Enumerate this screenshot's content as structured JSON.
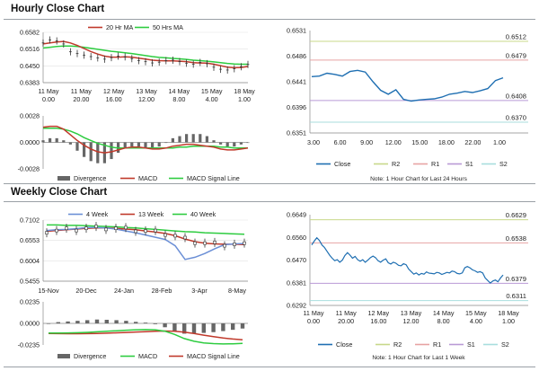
{
  "sections": {
    "hourly": "Hourly Close Chart",
    "weekly": "Weekly Close Chart"
  },
  "colors": {
    "close": "#1f6fb2",
    "ma_red": "#c0392b",
    "ma_green": "#2ecc40",
    "bar": "#666666",
    "r2": "#c8d88a",
    "r1": "#e7a3a3",
    "s1": "#b99ad6",
    "s2": "#a8dede",
    "blue4w": "#6b8fd6"
  },
  "chart_data": [
    {
      "id": "hourly-ma",
      "type": "line",
      "legend": [
        "20 Hr MA",
        "50 Hrs MA"
      ],
      "x_tick_labels": [
        [
          "11 May",
          "0.00"
        ],
        [
          "11 May",
          "20.00"
        ],
        [
          "12 May",
          "16.00"
        ],
        [
          "13 May",
          "12.00"
        ],
        [
          "14 May",
          "8.00"
        ],
        [
          "15 May",
          "4.00"
        ],
        [
          "18 May",
          "1.00"
        ]
      ],
      "y_tick_labels": [
        "0.6582",
        "0.6516",
        "0.6450",
        "0.6383"
      ],
      "ylim": [
        0.6383,
        0.6582
      ],
      "series": [
        {
          "name": "Close",
          "values": [
            0.654,
            0.6552,
            0.6548,
            0.6536,
            0.6505,
            0.6498,
            0.6492,
            0.6486,
            0.6481,
            0.6476,
            0.6482,
            0.6488,
            0.6485,
            0.6478,
            0.647,
            0.6466,
            0.6461,
            0.6464,
            0.647,
            0.6472,
            0.6466,
            0.646,
            0.6456,
            0.6463,
            0.6458,
            0.6444,
            0.6436,
            0.6433,
            0.6438,
            0.6446,
            0.6455
          ]
        },
        {
          "name": "20 Hr MA",
          "values": [
            0.6536,
            0.654,
            0.6544,
            0.6546,
            0.654,
            0.653,
            0.6518,
            0.6506,
            0.6496,
            0.6488,
            0.6484,
            0.6484,
            0.6485,
            0.6484,
            0.648,
            0.6476,
            0.6472,
            0.647,
            0.6469,
            0.6469,
            0.6468,
            0.6466,
            0.6462,
            0.6461,
            0.646,
            0.6456,
            0.645,
            0.6444,
            0.6442,
            0.6443,
            0.6447
          ]
        },
        {
          "name": "50 Hrs MA",
          "values": [
            0.652,
            0.6523,
            0.6526,
            0.6528,
            0.6528,
            0.6526,
            0.6523,
            0.6519,
            0.6515,
            0.6511,
            0.6507,
            0.6504,
            0.6501,
            0.6498,
            0.6494,
            0.649,
            0.6486,
            0.6483,
            0.6481,
            0.6479,
            0.6477,
            0.6475,
            0.6472,
            0.647,
            0.6468,
            0.6465,
            0.6462,
            0.6459,
            0.6457,
            0.6456,
            0.6456
          ]
        }
      ]
    },
    {
      "id": "hourly-macd",
      "type": "bar",
      "legend": [
        "Divergence",
        "MACD",
        "MACD Signal Line"
      ],
      "y_tick_labels": [
        "0.0028",
        "0.0000",
        "-0.0028"
      ],
      "ylim": [
        -0.0028,
        0.0028
      ],
      "divergence": [
        0.0001,
        0.0002,
        0.0002,
        0.0001,
        -0.0001,
        -0.0004,
        -0.0007,
        -0.0009,
        -0.001,
        -0.001,
        -0.0008,
        -0.0005,
        -0.0003,
        -0.0002,
        -0.0002,
        -0.0003,
        -0.0003,
        -0.0002,
        0.0,
        0.0002,
        0.0003,
        0.0004,
        0.0004,
        0.0004,
        0.0003,
        0.0001,
        -0.0001,
        -0.0002,
        -0.0002,
        -0.0001,
        0.0
      ],
      "macd": [
        0.0016,
        0.0017,
        0.0017,
        0.0014,
        0.0008,
        0.0002,
        -0.0003,
        -0.0007,
        -0.001,
        -0.0011,
        -0.001,
        -0.0008,
        -0.0006,
        -0.0005,
        -0.0005,
        -0.0006,
        -0.0007,
        -0.0007,
        -0.0006,
        -0.0004,
        -0.0003,
        -0.0002,
        -0.0002,
        -0.0003,
        -0.0004,
        -0.0005,
        -0.0007,
        -0.0008,
        -0.0008,
        -0.0007,
        -0.0006
      ],
      "signal": [
        0.0015,
        0.0015,
        0.0015,
        0.0014,
        0.0012,
        0.0009,
        0.0005,
        0.0002,
        -0.0001,
        -0.0003,
        -0.0005,
        -0.0006,
        -0.0006,
        -0.0006,
        -0.0006,
        -0.0006,
        -0.0006,
        -0.0006,
        -0.0006,
        -0.0006,
        -0.0005,
        -0.0005,
        -0.0004,
        -0.0004,
        -0.0004,
        -0.0004,
        -0.0005,
        -0.0005,
        -0.0006,
        -0.0006,
        -0.0006
      ]
    },
    {
      "id": "hourly-close",
      "type": "line",
      "legend": [
        "Close",
        "R2",
        "R1",
        "S1",
        "S2"
      ],
      "x_tick_labels": [
        "3.00",
        "6.00",
        "9.00",
        "12.00",
        "15.00",
        "18.00",
        "22.00",
        "1.00"
      ],
      "y_tick_labels": [
        "0.6531",
        "0.6486",
        "0.6441",
        "0.6396",
        "0.6351"
      ],
      "ylim": [
        0.6351,
        0.6531
      ],
      "levels": [
        {
          "name": "R2",
          "value": 0.6512,
          "label": "0.6512"
        },
        {
          "name": "R1",
          "value": 0.6479,
          "label": "0.6479"
        },
        {
          "name": "S1",
          "value": 0.6408,
          "label": "0.6408"
        },
        {
          "name": "S2",
          "value": 0.637,
          "label": "0.6370"
        }
      ],
      "values": [
        0.645,
        0.6451,
        0.6456,
        0.6454,
        0.6451,
        0.6459,
        0.6461,
        0.6458,
        0.6441,
        0.6426,
        0.6419,
        0.6427,
        0.641,
        0.6407,
        0.6409,
        0.641,
        0.6411,
        0.6414,
        0.6419,
        0.6421,
        0.6424,
        0.6422,
        0.6425,
        0.6429,
        0.6443,
        0.6448
      ],
      "note": "Note: 1 Hour Chart for Last 24 Hours"
    },
    {
      "id": "weekly-ma",
      "type": "line",
      "legend": [
        "4 Week",
        "13 Week",
        "40 Week"
      ],
      "x_tick_labels": [
        "15-Nov",
        "20-Dec",
        "24-Jan",
        "28-Feb",
        "3-Apr",
        "8-May"
      ],
      "y_tick_labels": [
        "0.7102",
        "0.6553",
        "0.6004",
        "0.5455"
      ],
      "ylim": [
        0.5455,
        0.7102
      ],
      "series": [
        {
          "name": "4 Week",
          "values": [
            0.682,
            0.684,
            0.685,
            0.687,
            0.69,
            0.69,
            0.689,
            0.686,
            0.681,
            0.676,
            0.67,
            0.664,
            0.658,
            0.641,
            0.604,
            0.61,
            0.62,
            0.633,
            0.644,
            0.646,
            0.647
          ]
        },
        {
          "name": "13 Week",
          "values": [
            0.68,
            0.682,
            0.684,
            0.686,
            0.688,
            0.689,
            0.689,
            0.688,
            0.686,
            0.684,
            0.681,
            0.678,
            0.674,
            0.668,
            0.659,
            0.652,
            0.648,
            0.646,
            0.645,
            0.645,
            0.644
          ]
        },
        {
          "name": "40 Week",
          "values": [
            0.697,
            0.697,
            0.696,
            0.696,
            0.695,
            0.694,
            0.693,
            0.692,
            0.69,
            0.689,
            0.687,
            0.685,
            0.683,
            0.681,
            0.679,
            0.678,
            0.676,
            0.675,
            0.674,
            0.673,
            0.672
          ]
        }
      ]
    },
    {
      "id": "weekly-macd",
      "type": "bar",
      "legend": [
        "Divergence",
        "MACD",
        "MACD Signal Line"
      ],
      "y_tick_labels": [
        "0.0235",
        "0.0000",
        "-0.0235"
      ],
      "ylim": [
        -0.0235,
        0.0235
      ],
      "divergence": [
        0.0,
        0.001,
        0.0015,
        0.002,
        0.0025,
        0.003,
        0.0028,
        0.0025,
        0.002,
        0.0012,
        0.0006,
        -0.0006,
        -0.003,
        -0.006,
        -0.008,
        -0.008,
        -0.0074,
        -0.0068,
        -0.006,
        -0.005,
        -0.004
      ],
      "macd": [
        -0.0105,
        -0.0105,
        -0.0104,
        -0.0102,
        -0.0098,
        -0.0092,
        -0.0086,
        -0.008,
        -0.0074,
        -0.007,
        -0.0068,
        -0.007,
        -0.0085,
        -0.012,
        -0.0165,
        -0.0195,
        -0.0212,
        -0.022,
        -0.0224,
        -0.0222,
        -0.0218
      ],
      "signal": [
        -0.011,
        -0.0112,
        -0.0113,
        -0.0113,
        -0.0112,
        -0.011,
        -0.0107,
        -0.0103,
        -0.0099,
        -0.0094,
        -0.009,
        -0.0086,
        -0.0083,
        -0.0085,
        -0.0095,
        -0.011,
        -0.0128,
        -0.0145,
        -0.016,
        -0.017,
        -0.0178
      ]
    },
    {
      "id": "weekly-close",
      "type": "line",
      "legend": [
        "Close",
        "R2",
        "R1",
        "S1",
        "S2"
      ],
      "x_tick_labels": [
        [
          "11 May",
          "0.00"
        ],
        [
          "11 May",
          "20.00"
        ],
        [
          "12 May",
          "16.00"
        ],
        [
          "13 May",
          "12.00"
        ],
        [
          "14 May",
          "8.00"
        ],
        [
          "15 May",
          "4.00"
        ],
        [
          "18 May",
          "1.00"
        ]
      ],
      "y_tick_labels": [
        "0.6649",
        "0.6560",
        "0.6470",
        "0.6381",
        "0.6292"
      ],
      "ylim": [
        0.6292,
        0.6649
      ],
      "levels": [
        {
          "name": "R2",
          "value": 0.6629,
          "label": "0.6629"
        },
        {
          "name": "R1",
          "value": 0.6538,
          "label": "0.6538"
        },
        {
          "name": "S1",
          "value": 0.6379,
          "label": "0.6379"
        },
        {
          "name": "S2",
          "value": 0.6311,
          "label": "0.6311"
        }
      ],
      "values": [
        0.653,
        0.6545,
        0.6558,
        0.6548,
        0.653,
        0.652,
        0.6505,
        0.649,
        0.6478,
        0.6468,
        0.6472,
        0.6462,
        0.647,
        0.6488,
        0.65,
        0.649,
        0.6478,
        0.6485,
        0.6472,
        0.6466,
        0.6472,
        0.6462,
        0.647,
        0.648,
        0.6486,
        0.648,
        0.6468,
        0.6462,
        0.647,
        0.6475,
        0.646,
        0.6455,
        0.6462,
        0.6458,
        0.645,
        0.6448,
        0.6456,
        0.6452,
        0.6435,
        0.6425,
        0.6415,
        0.642,
        0.6412,
        0.6418,
        0.6415,
        0.6424,
        0.6419,
        0.6418,
        0.6416,
        0.6422,
        0.642,
        0.6414,
        0.6418,
        0.6422,
        0.642,
        0.6427,
        0.6425,
        0.6418,
        0.6416,
        0.642,
        0.644,
        0.6445,
        0.644,
        0.6432,
        0.6428,
        0.6422,
        0.6425,
        0.642,
        0.64,
        0.639,
        0.638,
        0.6388,
        0.6392,
        0.6385,
        0.64,
        0.6412
      ],
      "note": "Note: 1 Hour Chart for Last 1 Week"
    }
  ]
}
